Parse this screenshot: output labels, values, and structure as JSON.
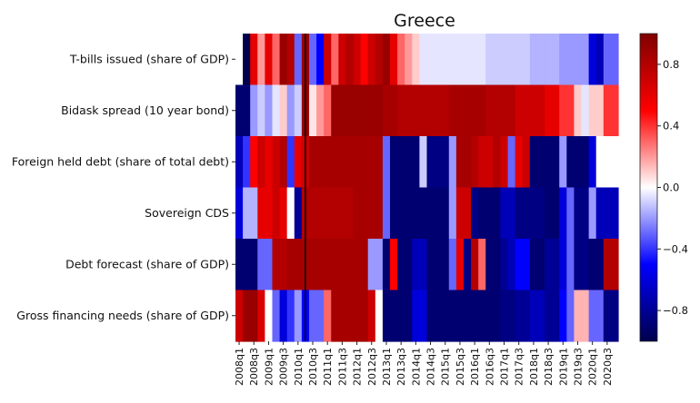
{
  "chart_data": {
    "type": "heatmap",
    "title": "Greece",
    "colormap": "seismic",
    "value_range": [
      -1,
      1
    ],
    "rows": [
      "T-bills issued (share of GDP)",
      "Bidask spread (10 year bond)",
      "Foreign held debt (share of total debt)",
      "Sovereign CDS",
      "Debt forecast (share of GDP)",
      "Gross financing needs (share of GDP)"
    ],
    "columns": [
      "2008q1",
      "2008q2",
      "2008q3",
      "2008q4",
      "2009q1",
      "2009q2",
      "2009q3",
      "2009q4",
      "2010q1",
      "2010q2",
      "2010q3",
      "2010q4",
      "2011q1",
      "2011q2",
      "2011q3",
      "2011q4",
      "2012q1",
      "2012q2",
      "2012q3",
      "2012q4",
      "2013q1",
      "2013q2",
      "2013q3",
      "2013q4",
      "2014q1",
      "2014q2",
      "2014q3",
      "2014q4",
      "2015q1",
      "2015q2",
      "2015q3",
      "2015q4",
      "2016q1",
      "2016q2",
      "2016q3",
      "2016q4",
      "2017q1",
      "2017q2",
      "2017q3",
      "2017q4",
      "2018q1",
      "2018q2",
      "2018q3",
      "2018q4",
      "2019q1",
      "2019q2",
      "2019q3",
      "2019q4",
      "2020q1",
      "2020q2",
      "2020q3",
      "2020q4"
    ],
    "x_tick_labels": [
      "2008q1",
      "2008q3",
      "2009q1",
      "2009q3",
      "2010q1",
      "2010q3",
      "2011q1",
      "2011q3",
      "2012q1",
      "2012q3",
      "2013q1",
      "2013q3",
      "2014q1",
      "2014q3",
      "2015q1",
      "2015q3",
      "2016q1",
      "2016q3",
      "2017q1",
      "2017q3",
      "2018q1",
      "2018q3",
      "2019q1",
      "2019q3",
      "2020q1",
      "2020q3"
    ],
    "values": [
      [
        0.0,
        -1.0,
        0.6,
        0.2,
        0.6,
        0.3,
        0.9,
        0.8,
        -0.3,
        0.9,
        -0.3,
        -0.5,
        0.7,
        0.3,
        0.7,
        0.8,
        0.7,
        0.5,
        0.7,
        0.8,
        0.9,
        0.6,
        0.3,
        0.2,
        0.1,
        -0.05,
        -0.05,
        -0.05,
        -0.05,
        -0.05,
        -0.05,
        -0.05,
        -0.05,
        -0.05,
        -0.1,
        -0.1,
        -0.1,
        -0.1,
        -0.1,
        -0.1,
        -0.15,
        -0.15,
        -0.15,
        -0.15,
        -0.2,
        -0.2,
        -0.2,
        -0.2,
        -0.6,
        -0.7,
        -0.3,
        -0.3
      ],
      [
        -0.9,
        -0.9,
        -0.2,
        -0.1,
        -0.2,
        -0.05,
        0.1,
        -0.2,
        -0.1,
        0.9,
        0.05,
        0.2,
        0.3,
        0.9,
        0.9,
        0.9,
        0.9,
        0.9,
        0.9,
        0.9,
        0.85,
        0.85,
        0.8,
        0.8,
        0.8,
        0.8,
        0.8,
        0.8,
        0.8,
        0.85,
        0.85,
        0.85,
        0.85,
        0.85,
        0.8,
        0.8,
        0.8,
        0.8,
        0.7,
        0.7,
        0.7,
        0.7,
        0.6,
        0.6,
        0.4,
        0.4,
        0.1,
        -0.05,
        0.1,
        0.1,
        0.4,
        0.4
      ],
      [
        -0.7,
        -0.4,
        0.5,
        0.7,
        0.6,
        0.7,
        0.8,
        -0.4,
        0.6,
        0.7,
        0.85,
        0.85,
        0.85,
        0.85,
        0.85,
        0.85,
        0.85,
        0.85,
        0.85,
        0.85,
        -0.3,
        -0.9,
        -0.9,
        -0.9,
        -0.9,
        -0.1,
        -0.85,
        -0.85,
        -0.85,
        -0.2,
        0.85,
        0.85,
        0.8,
        0.7,
        0.7,
        0.8,
        0.7,
        -0.3,
        0.6,
        0.7,
        -0.9,
        -0.9,
        -0.9,
        -0.9,
        -0.2,
        -0.9,
        -0.9,
        -0.9,
        -0.6,
        0.0,
        0.0,
        0.0
      ],
      [
        -0.6,
        -0.15,
        -0.15,
        0.6,
        0.6,
        0.7,
        0.6,
        0.0,
        -0.8,
        0.8,
        0.8,
        0.8,
        0.8,
        0.8,
        0.8,
        0.8,
        0.85,
        0.85,
        0.85,
        0.85,
        -0.3,
        -0.9,
        -0.9,
        -0.9,
        -0.9,
        -0.9,
        -0.9,
        -0.9,
        -0.9,
        -0.2,
        0.7,
        0.7,
        -0.85,
        -0.9,
        -0.9,
        -0.9,
        -0.7,
        -0.7,
        -0.85,
        -0.85,
        -0.85,
        -0.85,
        -0.9,
        -0.9,
        -0.6,
        -0.3,
        -0.85,
        -0.85,
        -0.2,
        -0.7,
        -0.7,
        -0.7
      ],
      [
        -0.9,
        -0.9,
        -0.9,
        -0.3,
        -0.3,
        0.8,
        0.8,
        0.85,
        0.85,
        0.85,
        0.85,
        0.85,
        0.85,
        0.85,
        0.85,
        0.85,
        0.85,
        0.85,
        -0.2,
        -0.2,
        -0.9,
        0.5,
        -0.9,
        -0.9,
        -0.7,
        -0.7,
        -0.9,
        -0.9,
        -0.9,
        -0.3,
        0.6,
        -0.85,
        0.8,
        0.3,
        -0.9,
        -0.9,
        -0.8,
        -0.7,
        -0.5,
        -0.5,
        -0.9,
        -0.9,
        -0.8,
        -0.8,
        -0.6,
        -0.3,
        -0.85,
        -0.85,
        -0.9,
        -0.9,
        0.8,
        0.8
      ],
      [
        0.7,
        0.9,
        0.9,
        0.65,
        0.0,
        -0.3,
        -0.6,
        -0.4,
        -0.2,
        -0.5,
        -0.3,
        -0.3,
        0.3,
        0.85,
        0.85,
        0.85,
        0.85,
        0.85,
        0.7,
        0.0,
        -0.9,
        -0.9,
        -0.9,
        -0.9,
        -0.6,
        -0.6,
        -0.9,
        -0.9,
        -0.9,
        -0.9,
        -0.9,
        -0.9,
        -0.9,
        -0.9,
        -0.9,
        -0.9,
        -0.85,
        -0.85,
        -0.8,
        -0.8,
        -0.7,
        -0.7,
        -0.8,
        -0.8,
        -0.5,
        -0.3,
        0.15,
        0.15,
        -0.3,
        -0.3,
        -0.85,
        -0.85
      ]
    ],
    "colorbar_ticks": [
      0.8,
      0.4,
      0.0,
      -0.4,
      -0.8
    ],
    "colorbar_tick_labels": [
      "0.8",
      "0.4",
      "0.0",
      "−0.4",
      "−0.8"
    ],
    "vertical_line_at": "2010q2",
    "grid": false,
    "legend": "colorbar-right"
  }
}
